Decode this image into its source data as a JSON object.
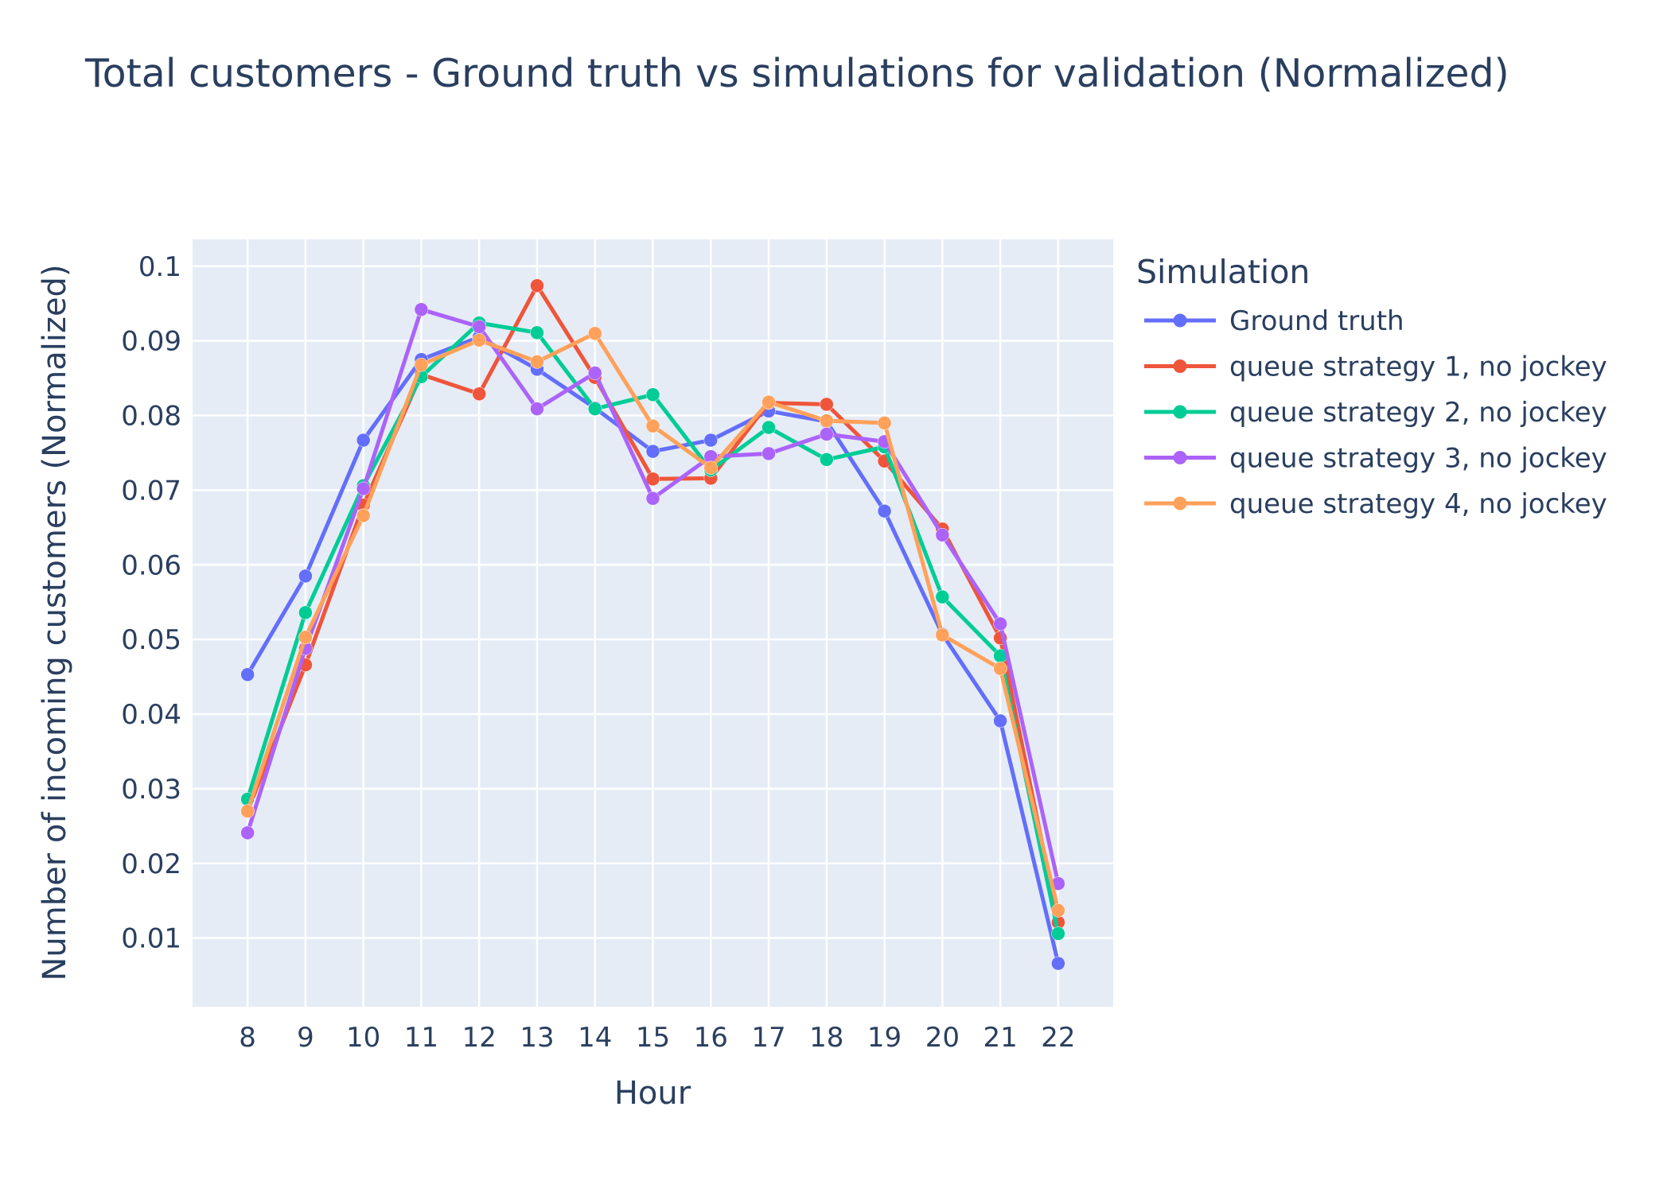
{
  "chart_data": {
    "type": "line",
    "title": "Total customers - Ground truth vs simulations for validation (Normalized)",
    "xlabel": "Hour",
    "ylabel": "Number of incoming customers (Normalized)",
    "x": [
      8,
      9,
      10,
      11,
      12,
      13,
      14,
      15,
      16,
      17,
      18,
      19,
      20,
      21,
      22
    ],
    "x_tick_labels": [
      "8",
      "9",
      "10",
      "11",
      "12",
      "13",
      "14",
      "15",
      "16",
      "17",
      "18",
      "19",
      "20",
      "21",
      "22"
    ],
    "xlim": [
      7.05,
      22.95
    ],
    "ylim": [
      0.0008,
      0.1036
    ],
    "y_ticks": [
      0.01,
      0.02,
      0.03,
      0.04,
      0.05,
      0.06,
      0.07,
      0.08,
      0.09,
      0.1
    ],
    "y_tick_labels": [
      "0.01",
      "0.02",
      "0.03",
      "0.04",
      "0.05",
      "0.06",
      "0.07",
      "0.08",
      "0.09",
      "0.1"
    ],
    "grid": true,
    "legend": {
      "title": "Simulation",
      "placement": "right"
    },
    "series": [
      {
        "name": "Ground truth",
        "color": "#636efa",
        "values": [
          0.0453,
          0.0585,
          0.0767,
          0.0875,
          0.0905,
          0.0862,
          0.081,
          0.0752,
          0.0767,
          0.0806,
          0.0792,
          0.0672,
          0.0507,
          0.0391,
          0.0066
        ]
      },
      {
        "name": "queue strategy 1, no jockey",
        "color": "#ef553b",
        "values": [
          0.027,
          0.0466,
          0.068,
          0.0855,
          0.0829,
          0.0974,
          0.0851,
          0.0715,
          0.0716,
          0.0817,
          0.0815,
          0.0739,
          0.0648,
          0.0502,
          0.0121
        ]
      },
      {
        "name": "queue strategy 2, no jockey",
        "color": "#00cc96",
        "values": [
          0.0286,
          0.0536,
          0.0706,
          0.0852,
          0.0924,
          0.0911,
          0.0809,
          0.0828,
          0.0727,
          0.0784,
          0.0741,
          0.0758,
          0.0557,
          0.0478,
          0.0106
        ]
      },
      {
        "name": "queue strategy 3, no jockey",
        "color": "#ab63fa",
        "values": [
          0.0241,
          0.0488,
          0.0702,
          0.0942,
          0.0919,
          0.0809,
          0.0857,
          0.0689,
          0.0745,
          0.0749,
          0.0775,
          0.0765,
          0.064,
          0.0521,
          0.0173
        ]
      },
      {
        "name": "queue strategy 4, no jockey",
        "color": "#ffa15a",
        "values": [
          0.027,
          0.0503,
          0.0666,
          0.0868,
          0.0901,
          0.0872,
          0.091,
          0.0786,
          0.073,
          0.0818,
          0.0793,
          0.079,
          0.0506,
          0.0461,
          0.0137
        ]
      }
    ]
  },
  "colors": {
    "plot_background": "#e5ecf6",
    "gridline": "#ffffff",
    "text": "#2a3f5f"
  }
}
